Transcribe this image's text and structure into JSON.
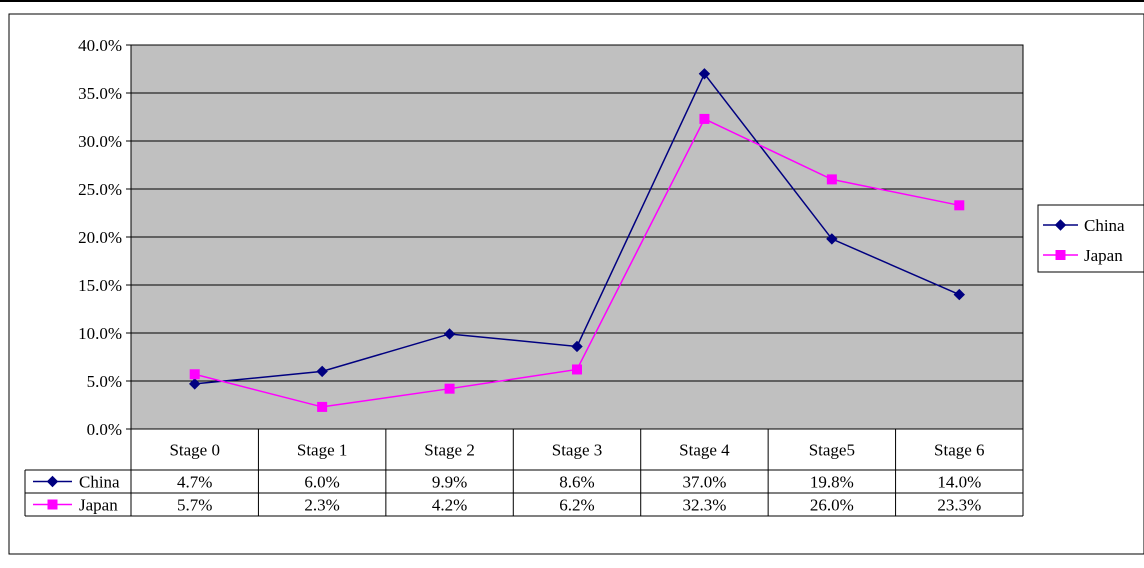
{
  "chart_data": {
    "type": "line",
    "title": "",
    "xlabel": "",
    "ylabel": "",
    "categories": [
      "Stage 0",
      "Stage 1",
      "Stage 2",
      "Stage 3",
      "Stage 4",
      "Stage5",
      "Stage 6"
    ],
    "series": [
      {
        "name": "China",
        "values": [
          4.7,
          6.0,
          9.9,
          8.6,
          37.0,
          19.8,
          14.0
        ],
        "labels": [
          "4.7%",
          "6.0%",
          "9.9%",
          "8.6%",
          "37.0%",
          "19.8%",
          "14.0%"
        ],
        "color": "#000080",
        "marker": "diamond"
      },
      {
        "name": "Japan",
        "values": [
          5.7,
          2.3,
          4.2,
          6.2,
          32.3,
          26.0,
          23.3
        ],
        "labels": [
          "5.7%",
          "2.3%",
          "4.2%",
          "6.2%",
          "32.3%",
          "26.0%",
          "23.3%"
        ],
        "color": "#ff00ff",
        "marker": "square"
      }
    ],
    "ylim": [
      0,
      40
    ],
    "yticks": [
      "0.0%",
      "5.0%",
      "10.0%",
      "15.0%",
      "20.0%",
      "25.0%",
      "30.0%",
      "35.0%",
      "40.0%"
    ],
    "plot_background": "#c0c0c0",
    "grid": true,
    "legend_position": "right",
    "data_table": true
  }
}
